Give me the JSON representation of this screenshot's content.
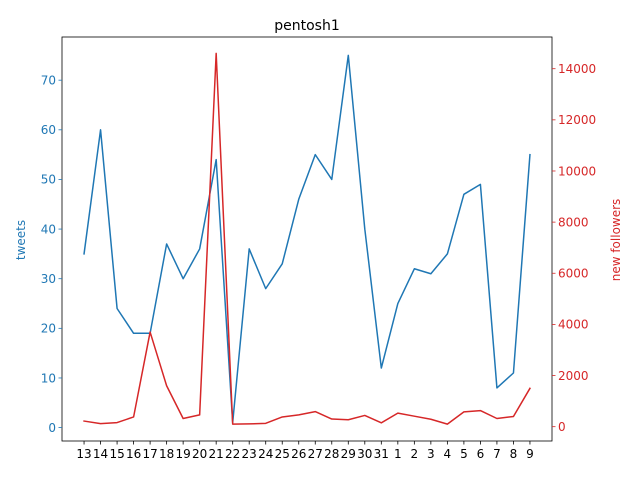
{
  "chart_data": {
    "type": "line",
    "title": "pentosh1",
    "categories": [
      "13",
      "14",
      "15",
      "16",
      "17",
      "18",
      "19",
      "20",
      "21",
      "22",
      "23",
      "24",
      "25",
      "26",
      "27",
      "28",
      "29",
      "30",
      "31",
      "1",
      "2",
      "3",
      "4",
      "5",
      "6",
      "7",
      "8",
      "9"
    ],
    "series": [
      {
        "name": "tweets",
        "axis": "left",
        "color": "#1f77b4",
        "values": [
          35,
          60,
          24,
          19,
          19,
          37,
          30,
          36,
          54,
          1,
          36,
          28,
          33,
          46,
          55,
          50,
          75,
          40,
          12,
          25,
          32,
          31,
          35,
          47,
          49,
          8,
          11,
          55
        ]
      },
      {
        "name": "new followers",
        "axis": "right",
        "color": "#d62728",
        "values": [
          220,
          120,
          160,
          380,
          3700,
          1600,
          320,
          460,
          14600,
          100,
          110,
          130,
          380,
          460,
          590,
          300,
          270,
          440,
          150,
          530,
          410,
          290,
          100,
          580,
          630,
          320,
          400,
          1500
        ]
      }
    ],
    "ylabel_left": "tweets",
    "ylabel_right": "new followers",
    "ylim_left": [
      -2.7,
      78.7
    ],
    "ylim_right": [
      -560,
      15240
    ],
    "yticks_left": [
      "0",
      "10",
      "20",
      "30",
      "40",
      "50",
      "60",
      "70"
    ],
    "yticks_right": [
      "0",
      "2000",
      "4000",
      "6000",
      "8000",
      "10000",
      "12000",
      "14000"
    ],
    "grid": false
  }
}
